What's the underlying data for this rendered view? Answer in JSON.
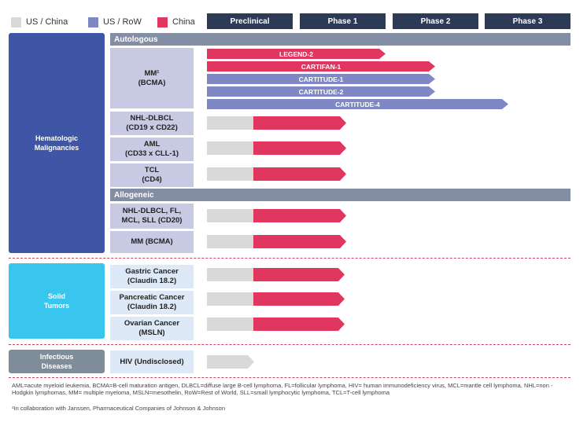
{
  "legend": [
    {
      "label": "US / China",
      "color": "#d9d9d9"
    },
    {
      "label": "US / RoW",
      "color": "#7f88c4"
    },
    {
      "label": "China",
      "color": "#e0365f"
    }
  ],
  "phases": [
    "Preclinical",
    "Phase 1",
    "Phase 2",
    "Phase 3"
  ],
  "categories": {
    "heme": "Hematologic\nMalignancies",
    "solid": "Solid\nTumors",
    "infectious": "Infectious\nDiseases"
  },
  "sections": {
    "autologous": "Autologous",
    "allogeneic": "Allogeneic"
  },
  "indications": {
    "mm": "MM¹\n(BCMA)",
    "nhl_dlbcl": "NHL-DLBCL\n(CD19 x CD22)",
    "aml": "AML\n(CD33 x CLL-1)",
    "tcl": "TCL\n(CD4)",
    "allo_nhl": "NHL-DLBCL, FL,\nMCL, SLL (CD20)",
    "allo_mm": "MM (BCMA)",
    "gastric": "Gastric Cancer\n(Claudin 18.2)",
    "pancreatic": "Pancreatic Cancer\n(Claudin 18.2)",
    "ovarian": "Ovarian Cancer\n(MSLN)",
    "hiv": "HIV (Undisclosed)"
  },
  "programs": {
    "legend2": "LEGEND-2",
    "cartifan1": "CARTIFAN-1",
    "cartitude1": "CARTITUDE-1",
    "cartitude2": "CARTITUDE-2",
    "cartitude4": "CARTITUDE-4"
  },
  "colors": {
    "china": "#e0365f",
    "us_row": "#7f88c4",
    "us_china": "#d9d9d9",
    "heme": "#3f56a6",
    "solid": "#38c5ee",
    "infectious": "#7f8c9a",
    "header": "#2d3a55"
  },
  "footnotes": {
    "abbrev": "AML=acute myeloid leukemia, BCMA=B-cell maturation antigen, DLBCL=diffuse large B-cell lymphoma, FL=follicular lymphoma, HIV= human immunodeficiency virus, MCL=mantle cell lymphoma, NHL=non -Hodgkin lymphomas, MM= multiple myeloma, MSLN=mesothelin, RoW=Rest of World, SLL=small lymphocytic lymphoma, TCL=T-cell lymphoma",
    "collab": "¹In collaboration with Janssen, Pharmaceutical Companies of Johnson & Johnson"
  }
}
